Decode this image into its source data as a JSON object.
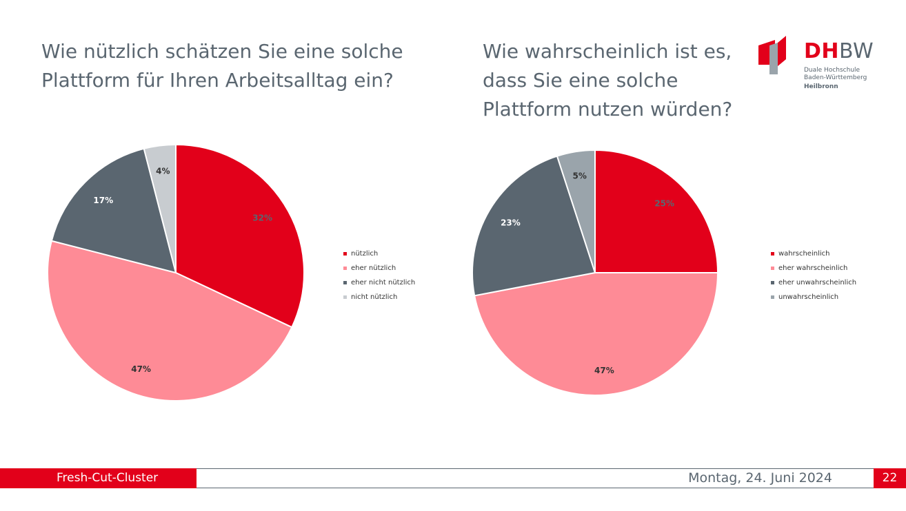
{
  "slide": {
    "title_left": "Wie nützlich schätzen Sie eine solche Plattform für Ihren Arbeitsalltag ein?",
    "title_right": "Wie wahrscheinlich ist es, dass Sie eine solche Plattform nutzen würden?"
  },
  "logo": {
    "brand_red": "DH",
    "brand_gray": "BW",
    "line1": "Duale Hochschule",
    "line2": "Baden-Württemberg",
    "line3": "Heilbronn"
  },
  "footer": {
    "project": "Fresh-Cut-Cluster",
    "date": "Montag, 24. Juni 2024",
    "page": "22"
  },
  "chart_data": [
    {
      "type": "pie",
      "categories": [
        "nützlich",
        "eher nützlich",
        "eher nicht nützlich",
        "nicht nützlich"
      ],
      "values": [
        32,
        47,
        17,
        4
      ],
      "labels": [
        "32%",
        "47%",
        "17%",
        "4%"
      ],
      "colors": [
        "#e2001a",
        "#fe8b96",
        "#5a6670",
        "#c8ccd0"
      ],
      "label_colors": [
        "#5a6670",
        "#333333",
        "#ffffff",
        "#333333"
      ],
      "legend_position": "right"
    },
    {
      "type": "pie",
      "categories": [
        "wahrscheinlich",
        "eher wahrscheinlich",
        "eher unwahrscheinlich",
        "unwahrscheinlich"
      ],
      "values": [
        25,
        47,
        23,
        5
      ],
      "labels": [
        "25%",
        "47%",
        "23%",
        "5%"
      ],
      "colors": [
        "#e2001a",
        "#fe8b96",
        "#5a6670",
        "#9aa4ab"
      ],
      "label_colors": [
        "#5a6670",
        "#333333",
        "#ffffff",
        "#333333"
      ],
      "legend_position": "right"
    }
  ]
}
